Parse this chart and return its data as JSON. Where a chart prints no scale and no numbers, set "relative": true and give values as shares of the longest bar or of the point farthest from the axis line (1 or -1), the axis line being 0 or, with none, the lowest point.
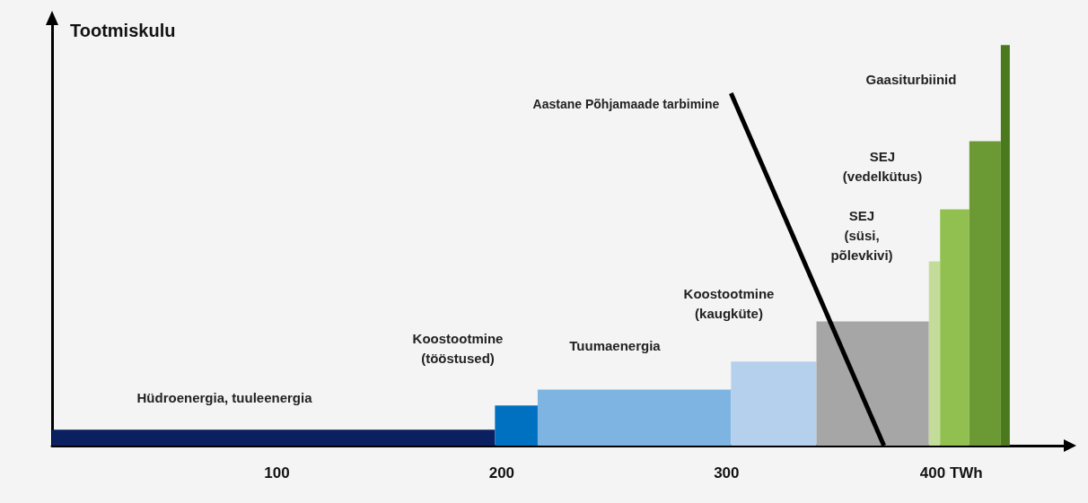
{
  "chart_data": {
    "type": "histogram",
    "relative": true,
    "ylabel": "Tootmiskulu",
    "bins": [
      0,
      197,
      216,
      302,
      340,
      390,
      395,
      408,
      422,
      426
    ],
    "xlim": [
      0,
      450
    ],
    "xticks": [
      100,
      200,
      300,
      {
        "value": 400,
        "label": "400 TWh"
      }
    ],
    "series": [
      {
        "values": [
          0.04,
          0.1,
          0.14,
          0.21,
          0.31,
          0.46,
          0.59,
          0.76,
          1
        ],
        "colors": [
          "#0a2060",
          "#0070c0",
          "#7eb4e2",
          "#b4d0ec",
          "#a6a6a6",
          "#c3dc9a",
          "#92c050",
          "#6b9a34",
          "#4b7a1e"
        ]
      },
      {
        "type": "line",
        "name": "Aastane Põhjamaade tarbimine",
        "x": [
          302,
          370
        ],
        "values": [
          0.88,
          0
        ],
        "color": "#000000"
      }
    ],
    "annotations": [
      "Hüdroenergia, tuuleenergia",
      "Koostootmine\n(tööstused)",
      "Tuumaenergia",
      "Koostootmine\n(kaugküte)",
      "SEJ\n(süsi,\npõlevkivi)",
      "SEJ\n(vedelkütus)",
      "Gaasiturbiinid"
    ],
    "grid": false,
    "legend": false
  }
}
